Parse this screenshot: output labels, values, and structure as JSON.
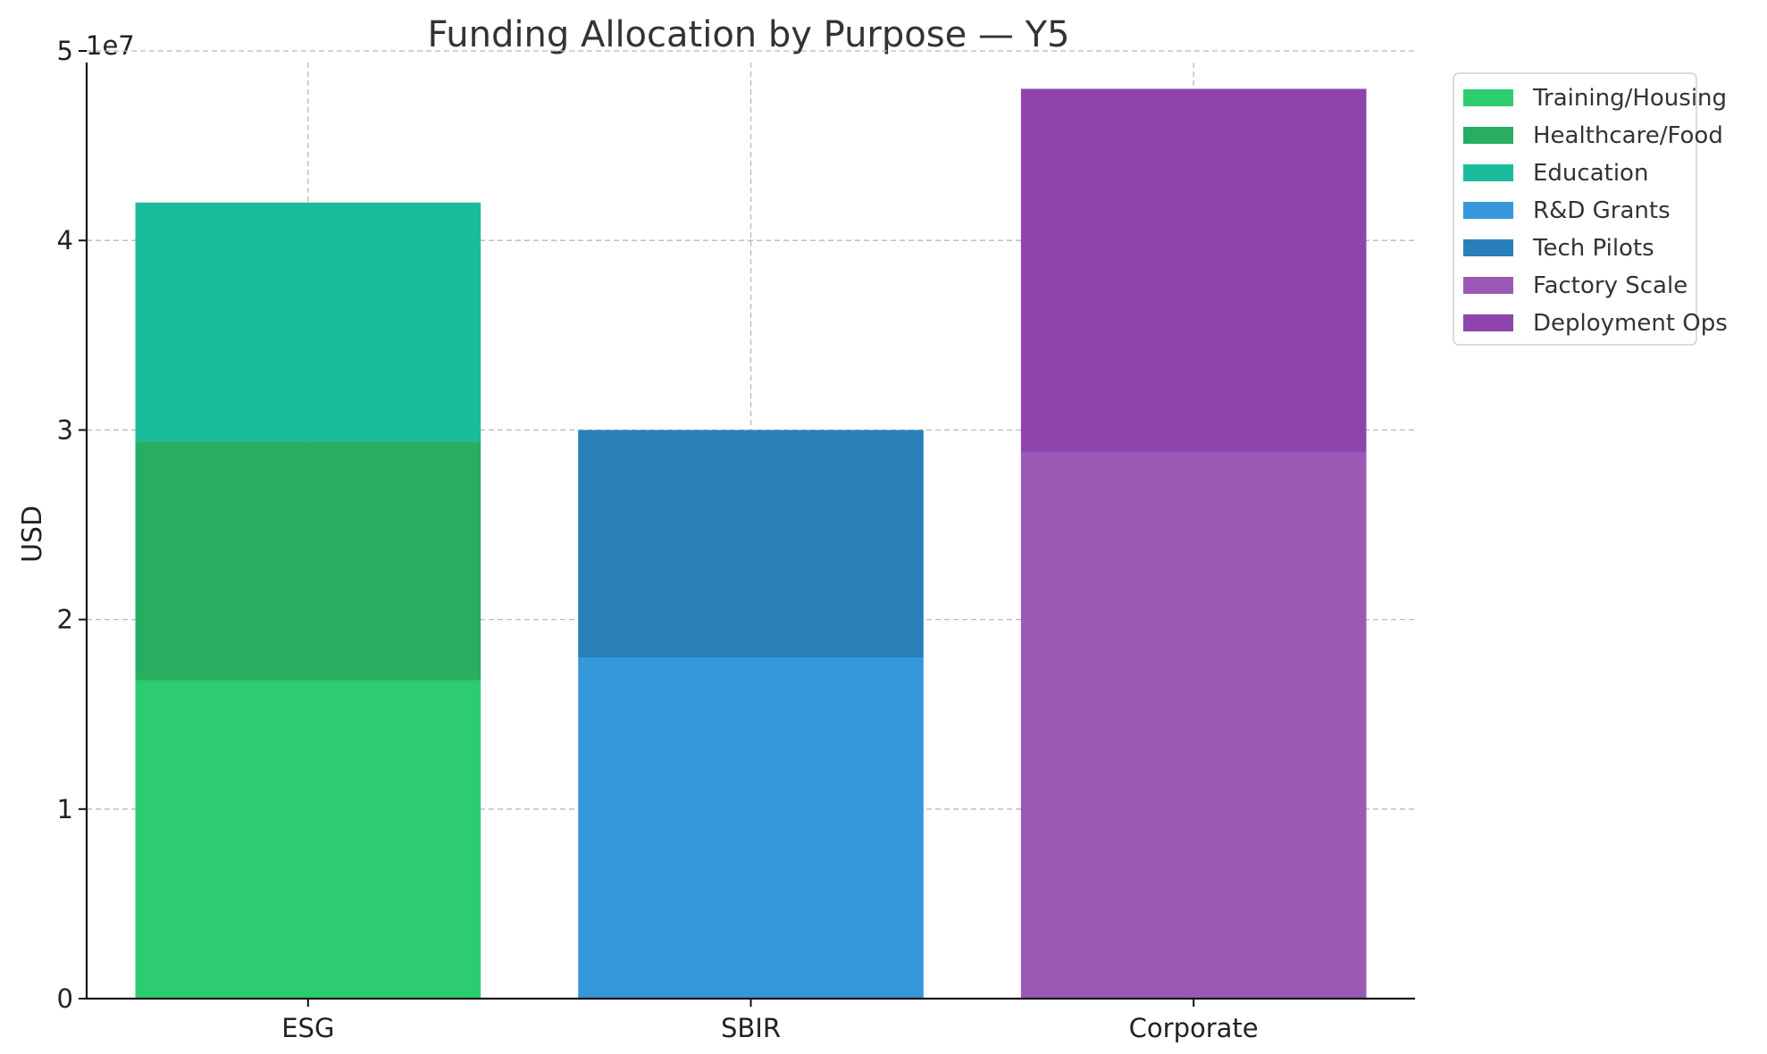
{
  "chart_data": {
    "type": "bar",
    "stacked": true,
    "title": "Funding Allocation by Purpose — Y5",
    "xlabel": "",
    "ylabel": "USD",
    "y_offset_label": "1e7",
    "y_scale": 10000000,
    "ylim": [
      0,
      50000000
    ],
    "yticks": [
      0,
      10000000,
      20000000,
      30000000,
      40000000,
      50000000
    ],
    "ytick_labels": [
      "0",
      "1",
      "2",
      "3",
      "4",
      "5"
    ],
    "categories": [
      "ESG",
      "SBIR",
      "Corporate"
    ],
    "grid": true,
    "legend_position": "outside-top-right",
    "series": [
      {
        "name": "Training/Housing",
        "color": "#2ecc71",
        "values": [
          16800000,
          0,
          0
        ]
      },
      {
        "name": "Healthcare/Food",
        "color": "#27ae60",
        "values": [
          12600000,
          0,
          0
        ]
      },
      {
        "name": "Education",
        "color": "#1abc9c",
        "values": [
          12600000,
          0,
          0
        ]
      },
      {
        "name": "R&D Grants",
        "color": "#3498db",
        "values": [
          0,
          18000000,
          0
        ]
      },
      {
        "name": "Tech Pilots",
        "color": "#2980b9",
        "values": [
          0,
          12000000,
          0
        ]
      },
      {
        "name": "Factory Scale",
        "color": "#9b59b6",
        "values": [
          0,
          0,
          28800000
        ]
      },
      {
        "name": "Deployment Ops",
        "color": "#8e44ad",
        "values": [
          0,
          0,
          19200000
        ]
      }
    ]
  }
}
